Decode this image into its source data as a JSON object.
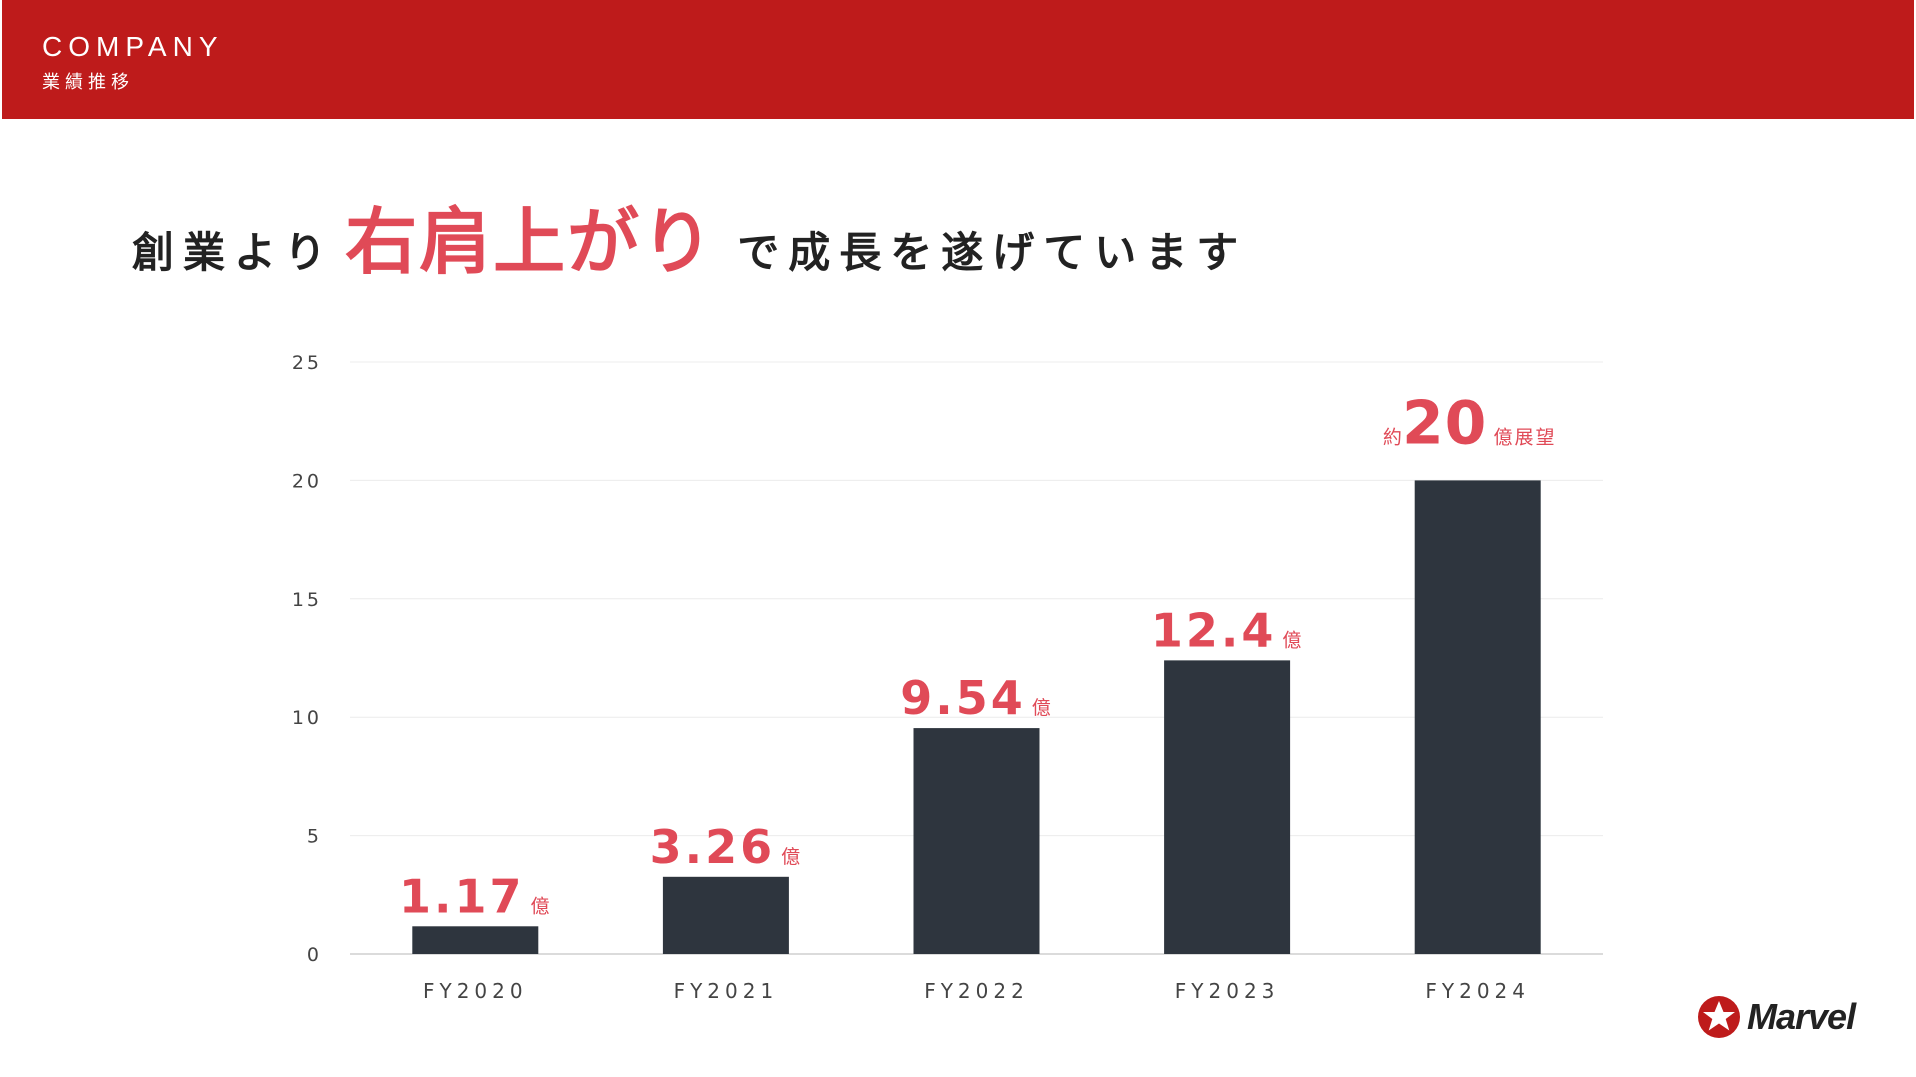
{
  "header": {
    "title": "COMPANY",
    "subtitle": "業績推移",
    "color": "#be1b1b"
  },
  "headline": {
    "before": "創業より",
    "highlight": "右肩上がり",
    "after": "で成長を遂げています",
    "accent_color": "#e04a57"
  },
  "logo": {
    "text": "Marvel",
    "icon": "star-badge-icon"
  },
  "chart_data": {
    "type": "bar",
    "categories": [
      "FY2020",
      "FY2021",
      "FY2022",
      "FY2023",
      "FY2024"
    ],
    "values": [
      1.17,
      3.26,
      9.54,
      12.4,
      20
    ],
    "ylim": [
      0,
      25
    ],
    "yticks": [
      "0",
      "5",
      "10",
      "15",
      "20",
      "25"
    ],
    "grid": true,
    "legend": "none",
    "bar_color": "#2e353e",
    "label_color": "#e04a57",
    "data_labels": [
      {
        "prefix": "",
        "value": "1.17",
        "suffix": "億"
      },
      {
        "prefix": "",
        "value": "3.26",
        "suffix": "億"
      },
      {
        "prefix": "",
        "value": "9.54",
        "suffix": "億"
      },
      {
        "prefix": "",
        "value": "12.4",
        "suffix": "億"
      },
      {
        "prefix": "約",
        "value": "20",
        "suffix": "億展望"
      }
    ]
  }
}
